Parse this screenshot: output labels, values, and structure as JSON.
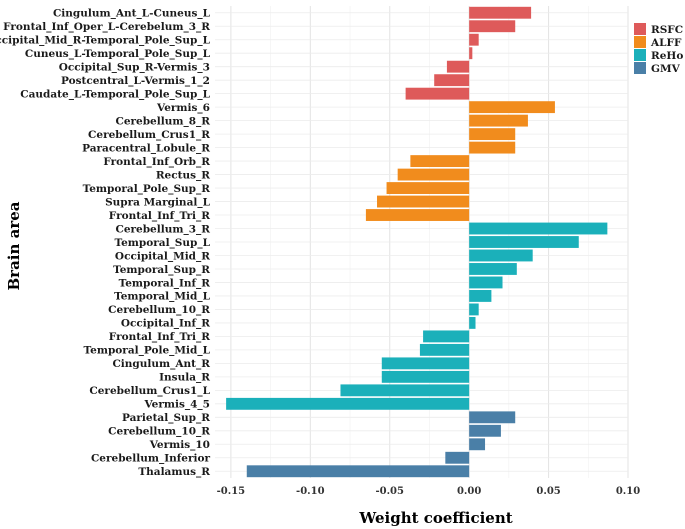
{
  "chart_data": {
    "type": "bar",
    "orientation": "horizontal",
    "xlabel": "Weight coefficient",
    "ylabel": "Brain area",
    "xlim": [
      -0.16,
      0.1
    ],
    "xticks": [
      -0.15,
      -0.1,
      -0.05,
      0.0,
      0.05,
      0.1
    ],
    "xtick_labels": [
      "-0.15",
      "-0.10",
      "-0.05",
      "0.00",
      "0.05",
      "0.10"
    ],
    "grid": true,
    "legend_position": "right-top",
    "series": [
      {
        "name": "RSFC",
        "color": "#DE5A5A"
      },
      {
        "name": "ALFF",
        "color": "#F18C1D"
      },
      {
        "name": "ReHo",
        "color": "#1BB0BA"
      },
      {
        "name": "GMV",
        "color": "#4A7FA7"
      }
    ],
    "bars": [
      {
        "label": "Cingulum_Ant_L-Cuneus_L",
        "value": 0.039,
        "series": "RSFC"
      },
      {
        "label": "Frontal_Inf_Oper_L-Cerebelum_3_R",
        "value": 0.029,
        "series": "RSFC"
      },
      {
        "label": "Occipital_Mid_R-Temporal_Pole_Sup_L",
        "value": 0.006,
        "series": "RSFC"
      },
      {
        "label": "Cuneus_L-Temporal_Pole_Sup_L",
        "value": 0.002,
        "series": "RSFC"
      },
      {
        "label": "Occipital_Sup_R-Vermis_3",
        "value": -0.014,
        "series": "RSFC"
      },
      {
        "label": "Postcentral_L-Vermis_1_2",
        "value": -0.022,
        "series": "RSFC"
      },
      {
        "label": "Caudate_L-Temporal_Pole_Sup_L",
        "value": -0.04,
        "series": "RSFC"
      },
      {
        "label": "Vermis_6",
        "value": 0.054,
        "series": "ALFF"
      },
      {
        "label": "Cerebellum_8_R",
        "value": 0.037,
        "series": "ALFF"
      },
      {
        "label": "Cerebellum_Crus1_R",
        "value": 0.029,
        "series": "ALFF"
      },
      {
        "label": "Paracentral_Lobule_R",
        "value": 0.029,
        "series": "ALFF"
      },
      {
        "label": "Frontal_Inf_Orb_R",
        "value": -0.037,
        "series": "ALFF"
      },
      {
        "label": "Rectus_R",
        "value": -0.045,
        "series": "ALFF"
      },
      {
        "label": "Temporal_Pole_Sup_R",
        "value": -0.052,
        "series": "ALFF"
      },
      {
        "label": "Supra Marginal_L",
        "value": -0.058,
        "series": "ALFF"
      },
      {
        "label": "Frontal_Inf_Tri_R",
        "value": -0.065,
        "series": "ALFF"
      },
      {
        "label": "Cerebellum_3_R",
        "value": 0.087,
        "series": "ReHo"
      },
      {
        "label": "Temporal_Sup_L",
        "value": 0.069,
        "series": "ReHo"
      },
      {
        "label": "Occipital_Mid_R",
        "value": 0.04,
        "series": "ReHo"
      },
      {
        "label": "Temporal_Sup_R",
        "value": 0.03,
        "series": "ReHo"
      },
      {
        "label": "Temporal_Inf_R",
        "value": 0.021,
        "series": "ReHo"
      },
      {
        "label": "Temporal_Mid_L",
        "value": 0.014,
        "series": "ReHo"
      },
      {
        "label": "Cerebellum_10_R",
        "value": 0.006,
        "series": "ReHo"
      },
      {
        "label": "Occipital_Inf_R",
        "value": 0.004,
        "series": "ReHo"
      },
      {
        "label": "Frontal_Inf_Tri_R",
        "value": -0.029,
        "series": "ReHo"
      },
      {
        "label": "Temporal_Pole_Mid_L",
        "value": -0.031,
        "series": "ReHo"
      },
      {
        "label": "Cingulum_Ant_R",
        "value": -0.055,
        "series": "ReHo"
      },
      {
        "label": "Insula_R",
        "value": -0.055,
        "series": "ReHo"
      },
      {
        "label": "Cerebellum_Crus1_L",
        "value": -0.081,
        "series": "ReHo"
      },
      {
        "label": "Vermis_4_5",
        "value": -0.153,
        "series": "ReHo"
      },
      {
        "label": "Parietal_Sup_R",
        "value": 0.029,
        "series": "GMV"
      },
      {
        "label": "Cerebellum_10_R",
        "value": 0.02,
        "series": "GMV"
      },
      {
        "label": "Vermis_10",
        "value": 0.01,
        "series": "GMV"
      },
      {
        "label": "Cerebellum_Inferior",
        "value": -0.015,
        "series": "GMV"
      },
      {
        "label": "Thalamus_R",
        "value": -0.14,
        "series": "GMV"
      }
    ]
  }
}
